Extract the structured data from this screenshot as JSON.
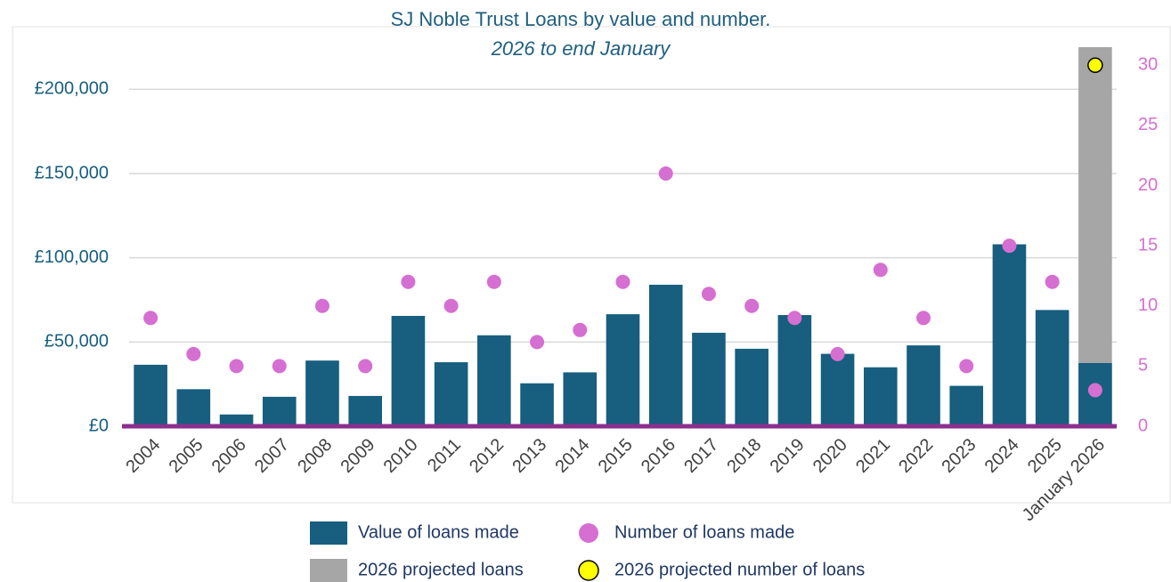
{
  "chart_data": {
    "type": "bar",
    "title": "SJ Noble Trust Loans by value and number.",
    "subtitle": "2026 to end January",
    "categories": [
      "2004",
      "2005",
      "2006",
      "2007",
      "2008",
      "2009",
      "2010",
      "2011",
      "2012",
      "2013",
      "2014",
      "2015",
      "2016",
      "2017",
      "2018",
      "2019",
      "2020",
      "2021",
      "2022",
      "2023",
      "2024",
      "2025",
      "January 2026"
    ],
    "series": [
      {
        "name": "2026 projected loans",
        "type": "bar",
        "color": "#a6a6a6",
        "values": [
          null,
          null,
          null,
          null,
          null,
          null,
          null,
          null,
          null,
          null,
          null,
          null,
          null,
          null,
          null,
          null,
          null,
          null,
          null,
          null,
          null,
          null,
          225000
        ]
      },
      {
        "name": "Value of loans made",
        "type": "bar",
        "color": "#175e7f",
        "values": [
          36500,
          22000,
          7000,
          17500,
          39000,
          18000,
          65500,
          38000,
          54000,
          25500,
          32000,
          66500,
          84000,
          55500,
          46000,
          66000,
          43000,
          35000,
          48000,
          24000,
          108000,
          69000,
          37500
        ]
      },
      {
        "name": "Number of loans made",
        "type": "scatter",
        "axis": "y2",
        "color": "#d56fd1",
        "values": [
          9,
          6,
          5,
          5,
          10,
          5,
          12,
          10,
          12,
          7,
          8,
          12,
          21,
          11,
          10,
          9,
          6,
          13,
          9,
          5,
          15,
          12,
          3
        ]
      },
      {
        "name": "2026 projected number of loans",
        "type": "scatter",
        "axis": "y2",
        "color": "#ffff00",
        "values": [
          null,
          null,
          null,
          null,
          null,
          null,
          null,
          null,
          null,
          null,
          null,
          null,
          null,
          null,
          null,
          null,
          null,
          null,
          null,
          null,
          null,
          null,
          30
        ]
      }
    ],
    "ylim": [
      0,
      225000
    ],
    "yticks": [
      {
        "value": 0,
        "label": "£0"
      },
      {
        "value": 50000,
        "label": "£50,000"
      },
      {
        "value": 100000,
        "label": "£100,000"
      },
      {
        "value": 150000,
        "label": "£150,000"
      },
      {
        "value": 200000,
        "label": "£200,000"
      }
    ],
    "y2lim": [
      0,
      31.5
    ],
    "y2ticks": [
      0,
      5,
      10,
      15,
      20,
      25,
      30
    ],
    "grid": true
  }
}
